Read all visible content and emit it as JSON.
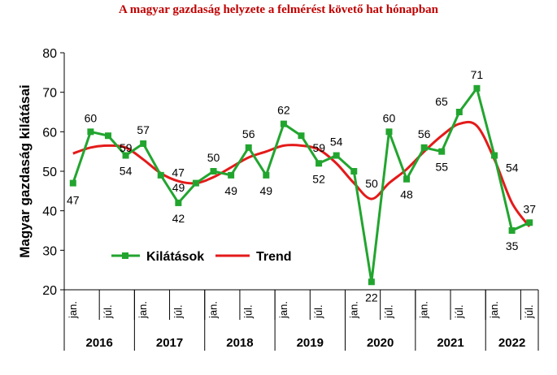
{
  "colors": {
    "series": "#22a52f",
    "trend": "#e41a1a",
    "title": "#c00000"
  },
  "chart_data": {
    "type": "line",
    "title": "A magyar gazdaság helyzete a felmérést követő hat hónapban",
    "ylabel": "Magyar gazdaság kilátásai",
    "ylim": [
      20,
      80
    ],
    "yticks": [
      20,
      30,
      40,
      50,
      60,
      70,
      80
    ],
    "grid": false,
    "legend_position": "lower-left",
    "month_labels": [
      "jan.",
      "júl."
    ],
    "years": [
      "2016",
      "2017",
      "2018",
      "2019",
      "2020",
      "2021",
      "2022"
    ],
    "series": [
      {
        "name": "Kilátások",
        "values": [
          47,
          60,
          59,
          54,
          57,
          49,
          42,
          47,
          50,
          49,
          56,
          49,
          62,
          59,
          52,
          54,
          50,
          22,
          60,
          48,
          56,
          55,
          65,
          71,
          54,
          35,
          37
        ],
        "labels": [
          "47",
          "60",
          "59",
          "54",
          "57",
          "49",
          "42",
          "47",
          "50",
          "49",
          "56",
          "49",
          "62",
          "59",
          "52",
          "54",
          "50",
          "22",
          "60",
          "48",
          "56",
          "55",
          "65",
          "71",
          "54",
          "35",
          "37"
        ]
      },
      {
        "name": "Trend",
        "values": [
          54.5,
          56,
          56.5,
          56,
          53,
          49.5,
          47.5,
          47,
          48.5,
          51,
          53.5,
          55,
          56.5,
          56.5,
          55.5,
          52,
          47,
          43,
          47,
          50.5,
          55,
          59,
          62,
          61.5,
          53,
          42,
          36
        ]
      }
    ]
  }
}
